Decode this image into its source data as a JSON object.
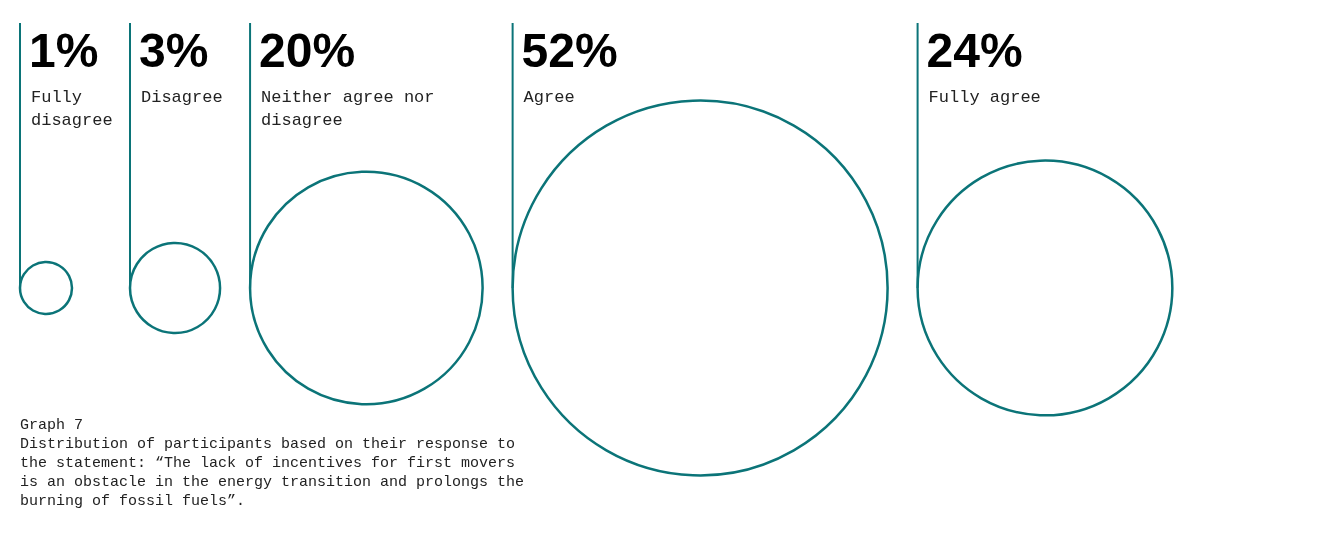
{
  "chart_data": {
    "type": "other",
    "title": "Graph 7",
    "subtitle": "Distribution of participants based on their response to the statement: “The lack of incentives for first movers is an obstacle in the energy transition and prolongs the burning of fossil fuels”.",
    "categories": [
      "Fully disagree",
      "Disagree",
      "Neither agree nor disagree",
      "Agree",
      "Fully agree"
    ],
    "values": [
      1,
      3,
      20,
      52,
      24
    ],
    "value_labels": [
      "1%",
      "3%",
      "20%",
      "52%",
      "24%"
    ],
    "color": "#0b7478"
  }
}
